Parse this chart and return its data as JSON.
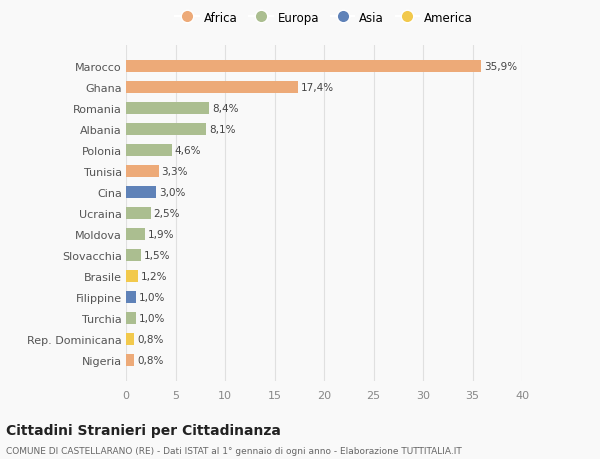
{
  "countries": [
    "Nigeria",
    "Rep. Dominicana",
    "Turchia",
    "Filippine",
    "Brasile",
    "Slovacchia",
    "Moldova",
    "Ucraina",
    "Cina",
    "Tunisia",
    "Polonia",
    "Albania",
    "Romania",
    "Ghana",
    "Marocco"
  ],
  "values": [
    0.8,
    0.8,
    1.0,
    1.0,
    1.2,
    1.5,
    1.9,
    2.5,
    3.0,
    3.3,
    4.6,
    8.1,
    8.4,
    17.4,
    35.9
  ],
  "labels": [
    "0,8%",
    "0,8%",
    "1,0%",
    "1,0%",
    "1,2%",
    "1,5%",
    "1,9%",
    "2,5%",
    "3,0%",
    "3,3%",
    "4,6%",
    "8,1%",
    "8,4%",
    "17,4%",
    "35,9%"
  ],
  "continent": [
    "Africa",
    "America",
    "Europa",
    "Asia",
    "America",
    "Europa",
    "Europa",
    "Europa",
    "Asia",
    "Africa",
    "Europa",
    "Europa",
    "Europa",
    "Africa",
    "Africa"
  ],
  "continent_colors": {
    "Africa": "#EDAA78",
    "Europa": "#ABBE90",
    "Asia": "#5F82B8",
    "America": "#F2C94C"
  },
  "legend_order": [
    "Africa",
    "Europa",
    "Asia",
    "America"
  ],
  "xlim": [
    0,
    40
  ],
  "xticks": [
    0,
    5,
    10,
    15,
    20,
    25,
    30,
    35,
    40
  ],
  "title": "Cittadini Stranieri per Cittadinanza",
  "subtitle": "COMUNE DI CASTELLARANO (RE) - Dati ISTAT al 1° gennaio di ogni anno - Elaborazione TUTTITALIA.IT",
  "bg_color": "#f9f9f9",
  "grid_color": "#e0e0e0",
  "bar_height": 0.55,
  "label_fontsize": 7.5,
  "ytick_fontsize": 8,
  "xtick_fontsize": 8
}
